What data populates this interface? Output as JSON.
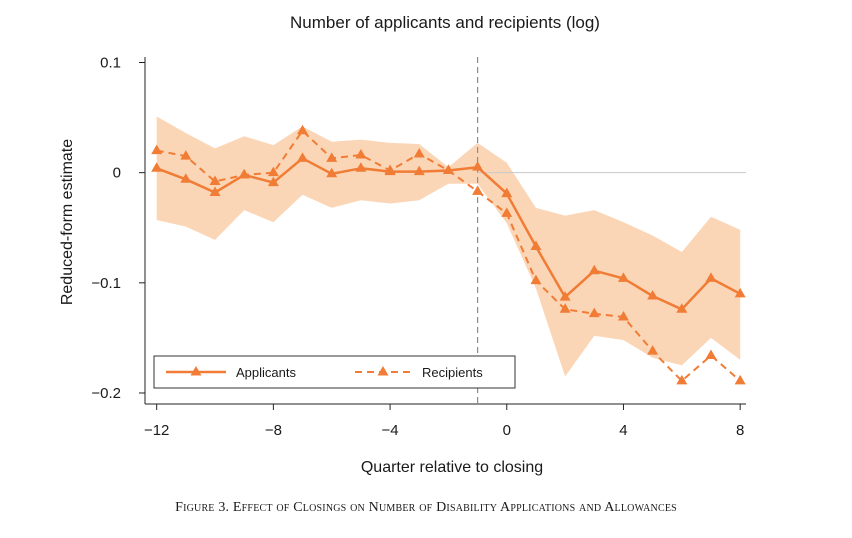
{
  "chart_data": {
    "type": "line",
    "title": "Number of applicants and recipients (log)",
    "xlabel": "Quarter relative to closing",
    "ylabel": "Reduced-form estimate",
    "xlim": [
      -12.4,
      8.2
    ],
    "ylim": [
      -0.21,
      0.105
    ],
    "xticks": [
      -12,
      -8,
      -4,
      0,
      4,
      8
    ],
    "xtick_labels": [
      "−12",
      "−8",
      "−4",
      "0",
      "4",
      "8"
    ],
    "yticks": [
      0.1,
      0,
      -0.1,
      -0.2
    ],
    "ytick_labels": [
      "0.1",
      "0",
      "−0.1",
      "−0.2"
    ],
    "reference_lines": {
      "vertical_x": -1,
      "horizontal_y": 0
    },
    "x": [
      -12,
      -11,
      -10,
      -9,
      -8,
      -7,
      -6,
      -5,
      -4,
      -3,
      -2,
      -1,
      0,
      1,
      2,
      3,
      4,
      5,
      6,
      7,
      8
    ],
    "series": [
      {
        "name": "Applicants",
        "style": "solid",
        "values": [
          0.004,
          -0.006,
          -0.018,
          -0.002,
          -0.009,
          0.013,
          -0.001,
          0.004,
          0.001,
          0.001,
          0.002,
          0.005,
          -0.019,
          -0.067,
          -0.113,
          -0.089,
          -0.096,
          -0.112,
          -0.124,
          -0.096,
          -0.11
        ],
        "ci_lower": [
          -0.043,
          -0.049,
          -0.061,
          -0.034,
          -0.045,
          -0.02,
          -0.032,
          -0.025,
          -0.028,
          -0.025,
          -0.01,
          -0.01,
          -0.046,
          -0.105,
          -0.185,
          -0.148,
          -0.152,
          -0.168,
          -0.175,
          -0.15,
          -0.17
        ],
        "ci_upper": [
          0.051,
          0.036,
          0.022,
          0.033,
          0.025,
          0.042,
          0.028,
          0.03,
          0.027,
          0.026,
          0.005,
          0.027,
          0.009,
          -0.032,
          -0.039,
          -0.034,
          -0.045,
          -0.057,
          -0.072,
          -0.04,
          -0.052
        ]
      },
      {
        "name": "Recipients",
        "style": "dashed",
        "values": [
          0.02,
          0.015,
          -0.008,
          -0.002,
          0.0,
          0.038,
          0.013,
          0.016,
          0.002,
          0.017,
          0.002,
          -0.017,
          -0.037,
          -0.098,
          -0.124,
          -0.128,
          -0.131,
          -0.162,
          -0.189,
          -0.166,
          -0.189
        ]
      }
    ],
    "colors": {
      "line": "#f07c35",
      "band": "#fbd6b6",
      "grid": "#c8c8c8",
      "refline": "#8c8c8c"
    },
    "legend": {
      "position": "bottom-left",
      "entries": [
        "Applicants",
        "Recipients"
      ]
    }
  },
  "caption": "Figure 3. Effect of Closings on Number of Disability Applications and Allowances"
}
